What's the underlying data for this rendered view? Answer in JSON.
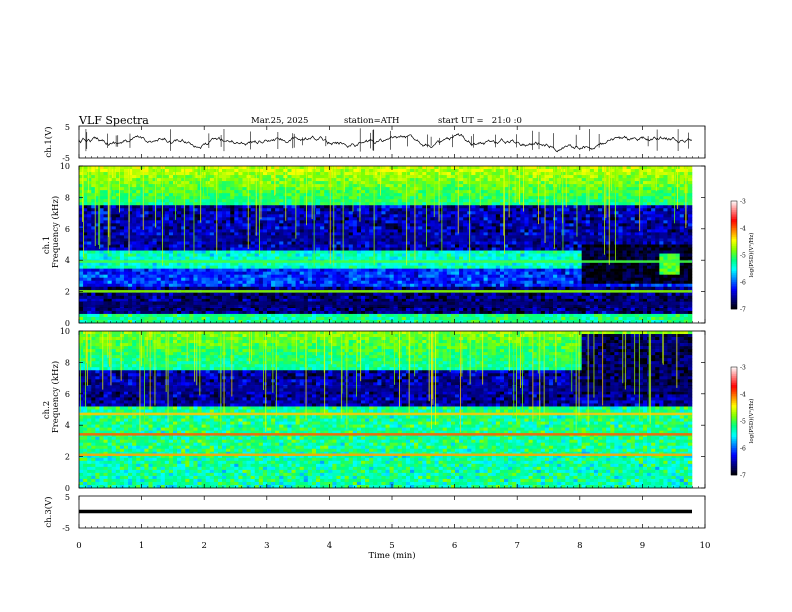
{
  "header": {
    "title": "VLF Spectra",
    "date": "Mar.25, 2025",
    "station": "station=ATH",
    "start": "start UT =   21:0 :0"
  },
  "chart_data": [
    {
      "type": "line",
      "ylabel": "ch.1(V)",
      "ylim": [
        -5,
        5
      ],
      "yticks": [
        "5",
        "-5"
      ],
      "series_description_values": {
        "mean": 0,
        "amplitude": 1.5
      }
    },
    {
      "type": "heatmap",
      "ylabel_top": "ch.1",
      "ylabel": "Frequency (kHz)",
      "ylim": [
        0,
        10
      ],
      "yticks": [
        "0",
        "2",
        "4",
        "6",
        "8",
        "10"
      ],
      "colorbar": {
        "label": "log(PSD)(V²/Hz)",
        "ticks": [
          "-3",
          "-4",
          "-5",
          "-6",
          "-7"
        ],
        "range": [
          -7,
          -3
        ]
      },
      "features": [
        {
          "name": "band",
          "freq_khz": 3.9,
          "log_psd": -5.0
        },
        {
          "name": "band",
          "freq_khz": 2.0,
          "log_psd": -4.8
        },
        {
          "name": "quiet",
          "freq_khz": 5.5,
          "log_psd": -6.6
        },
        {
          "name": "quiet",
          "freq_khz": 1.3,
          "log_psd": -6.7
        }
      ]
    },
    {
      "type": "heatmap",
      "ylabel_top": "ch.2",
      "ylabel": "Frequency (kHz)",
      "ylim": [
        0,
        10
      ],
      "yticks": [
        "0",
        "2",
        "4",
        "6",
        "8",
        "10"
      ],
      "colorbar": {
        "label": "log(PSD)(V²/Hz)",
        "ticks": [
          "-3",
          "-4",
          "-5",
          "-6",
          "-7"
        ],
        "range": [
          -7,
          -3
        ]
      },
      "features": [
        {
          "name": "band",
          "freq_khz": 3.4,
          "log_psd": -4.0
        },
        {
          "name": "band",
          "freq_khz": 2.1,
          "log_psd": -4.2
        },
        {
          "name": "band",
          "freq_khz": 4.7,
          "log_psd": -4.3
        },
        {
          "name": "quiet",
          "freq_khz": 6.4,
          "log_psd": -6.6
        }
      ]
    },
    {
      "type": "line",
      "ylabel": "ch.3(V)",
      "ylim": [
        -5,
        5
      ],
      "yticks": [
        "5",
        "-5"
      ],
      "series_description_values": {
        "mean": 0,
        "amplitude": 0
      }
    }
  ],
  "xaxis": {
    "label": "Time (min)",
    "range": [
      0,
      10
    ],
    "ticks": [
      "0",
      "1",
      "2",
      "3",
      "4",
      "5",
      "6",
      "7",
      "8",
      "9",
      "10"
    ]
  },
  "colors": {
    "scale": [
      "#000000",
      "#000080",
      "#0000ff",
      "#0080ff",
      "#00ffff",
      "#00ff80",
      "#80ff00",
      "#ffff00",
      "#ff8000",
      "#ff0000",
      "#ff8080",
      "#ffffff"
    ]
  }
}
